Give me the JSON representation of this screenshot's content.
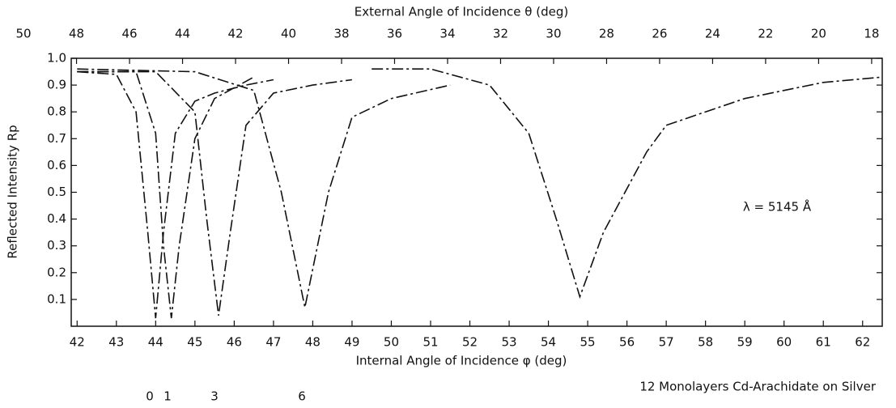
{
  "chart_data": {
    "type": "line",
    "title": "External Angle of Incidence θ (deg)",
    "x_label": "Internal Angle of Incidence φ (deg)",
    "y_label": "Reflected Intensity Rp",
    "annotation": "λ = 5145 Å",
    "footnote": "12 Monolayers Cd-Arachidate on Silver",
    "xlim": [
      41.85,
      62.5
    ],
    "xticks": [
      42,
      43,
      44,
      45,
      46,
      47,
      48,
      49,
      50,
      51,
      52,
      53,
      54,
      55,
      56,
      57,
      58,
      59,
      60,
      61,
      62
    ],
    "x2lim": [
      48.2,
      17.6
    ],
    "x2ticks": [
      50,
      48,
      46,
      44,
      42,
      40,
      38,
      36,
      34,
      32,
      30,
      28,
      26,
      24,
      22,
      20,
      18
    ],
    "ylim": [
      0,
      1
    ],
    "yticks": [
      0.1,
      0.2,
      0.3,
      0.4,
      0.5,
      0.6,
      0.7,
      0.8,
      0.9,
      {
        "value": 1,
        "label": "1.0"
      }
    ],
    "series": [
      {
        "name": "0",
        "color": "#111111",
        "x": [
          42,
          43,
          43.5,
          43.8,
          44.0,
          44.2,
          44.5,
          45,
          45.5,
          46.3,
          47
        ],
        "values": [
          0.95,
          0.94,
          0.8,
          0.35,
          0.03,
          0.35,
          0.72,
          0.84,
          0.87,
          0.9,
          0.92
        ]
      },
      {
        "name": "1",
        "color": "#111111",
        "x": [
          42,
          43.5,
          44,
          44.2,
          44.4,
          44.6,
          45,
          45.5,
          46.5
        ],
        "values": [
          0.95,
          0.95,
          0.72,
          0.3,
          0.03,
          0.3,
          0.7,
          0.85,
          0.93
        ]
      },
      {
        "name": "3",
        "color": "#111111",
        "x": [
          42,
          44,
          45,
          45.3,
          45.6,
          45.9,
          46.3,
          47,
          48,
          49
        ],
        "values": [
          0.95,
          0.95,
          0.8,
          0.4,
          0.04,
          0.35,
          0.75,
          0.87,
          0.9,
          0.92
        ]
      },
      {
        "name": "6",
        "color": "#111111",
        "x": [
          42,
          45,
          46.5,
          47.2,
          47.8,
          48.4,
          49,
          50,
          51.5
        ],
        "values": [
          0.96,
          0.95,
          0.88,
          0.5,
          0.07,
          0.5,
          0.78,
          0.85,
          0.9
        ]
      },
      {
        "name": "12",
        "color": "#111111",
        "x": [
          49.5,
          51,
          52.5,
          53.5,
          54.2,
          54.8,
          55.4,
          56.5,
          57,
          58,
          59,
          60,
          61,
          62.5
        ],
        "values": [
          0.96,
          0.96,
          0.9,
          0.72,
          0.4,
          0.11,
          0.35,
          0.65,
          0.75,
          0.8,
          0.85,
          0.88,
          0.91,
          0.93
        ]
      }
    ]
  }
}
